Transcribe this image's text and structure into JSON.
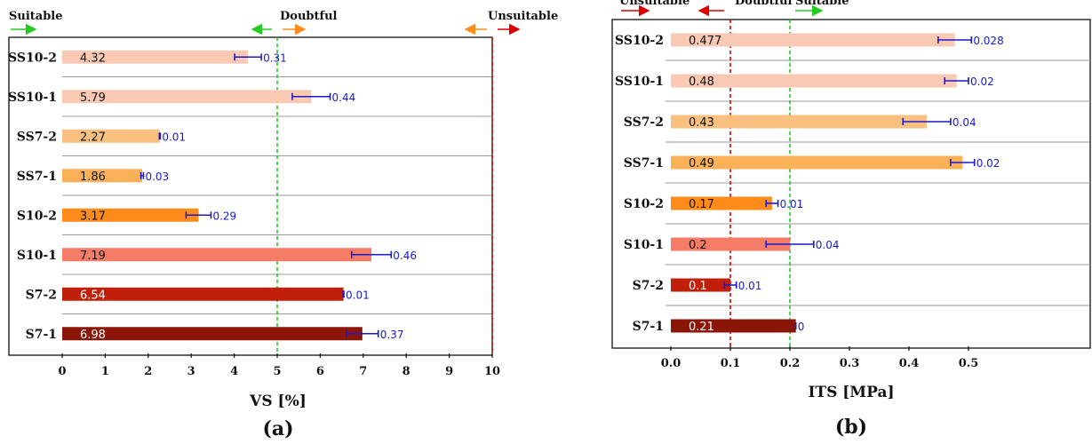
{
  "chart_data": [
    {
      "type": "bar",
      "orientation": "horizontal",
      "panel_label": "(a)",
      "xlabel": "VS [%]",
      "xlim": [
        0,
        10
      ],
      "xticks": [
        "0",
        "1",
        "2",
        "3",
        "4",
        "5",
        "6",
        "7",
        "8",
        "9",
        "10"
      ],
      "categories": [
        "SS10-2",
        "SS10-1",
        "SS7-2",
        "SS7-1",
        "S10-2",
        "S10-1",
        "S7-2",
        "S7-1"
      ],
      "values": [
        4.32,
        5.79,
        2.27,
        1.86,
        3.17,
        7.19,
        6.54,
        6.98
      ],
      "value_labels": [
        "4.32",
        "5.79",
        "2.27",
        "1.86",
        "3.17",
        "7.19",
        "6.54",
        "6.98"
      ],
      "errors": [
        0.31,
        0.44,
        0.01,
        0.03,
        0.29,
        0.46,
        0.01,
        0.37
      ],
      "error_labels": [
        "0.31",
        "0.44",
        "0.01",
        "0.03",
        "0.29",
        "0.46",
        "0.01",
        "0.37"
      ],
      "colors": [
        "#f9c9b4",
        "#f9c9b4",
        "#fac080",
        "#fab158",
        "#ff8c1a",
        "#f57c66",
        "#c0200a",
        "#8b1608"
      ],
      "thresholds": [
        {
          "value": 5,
          "color": "#22cc22"
        },
        {
          "value": 10,
          "color": "#dd0000"
        }
      ],
      "zones": [
        {
          "label": "Suitable",
          "arrow": "right",
          "arrow_color": "#22cc22"
        },
        {
          "label": "Doubtful",
          "arrows": [
            "left",
            "right"
          ],
          "arrow_colors": [
            "#22cc22",
            "#ff8c1a"
          ]
        },
        {
          "label": "Unsuitable",
          "arrows": [
            "left",
            "right"
          ],
          "arrow_colors": [
            "#ff8c1a",
            "#dd0000"
          ]
        }
      ]
    },
    {
      "type": "bar",
      "orientation": "horizontal",
      "panel_label": "(b)",
      "xlabel": "ITS [MPa]",
      "xlim": [
        -0.1,
        0.7
      ],
      "xticks": [
        "0.0",
        "0.1",
        "0.2",
        "0.3",
        "0.4",
        "0.5"
      ],
      "categories": [
        "SS10-2",
        "SS10-1",
        "SS7-2",
        "SS7-1",
        "S10-2",
        "S10-1",
        "S7-2",
        "S7-1"
      ],
      "values": [
        0.477,
        0.48,
        0.43,
        0.49,
        0.17,
        0.2,
        0.1,
        0.21
      ],
      "value_labels": [
        "0.477",
        "0.48",
        "0.43",
        "0.49",
        "0.17",
        "0.2",
        "0.1",
        "0.21"
      ],
      "errors": [
        0.028,
        0.02,
        0.04,
        0.02,
        0.01,
        0.04,
        0.01,
        0
      ],
      "error_labels": [
        "0.028",
        "0.02",
        "0.04",
        "0.02",
        "0.01",
        "0.04",
        "0.01",
        "0"
      ],
      "colors": [
        "#f9c9b4",
        "#f9c9b4",
        "#fac080",
        "#fab158",
        "#ff8c1a",
        "#f57c66",
        "#c0200a",
        "#8b1608"
      ],
      "thresholds": [
        {
          "value": 0.1,
          "color": "#dd0000"
        },
        {
          "value": 0.2,
          "color": "#22cc22"
        }
      ],
      "zones": [
        {
          "label": "Unsuitable",
          "arrow": "right",
          "arrow_color": "#dd0000"
        },
        {
          "label": "Doubtful",
          "arrow": "left",
          "arrow_color": "#dd0000"
        },
        {
          "label": "Suitable",
          "arrow": "right",
          "arrow_color": "#22cc22"
        }
      ]
    }
  ]
}
